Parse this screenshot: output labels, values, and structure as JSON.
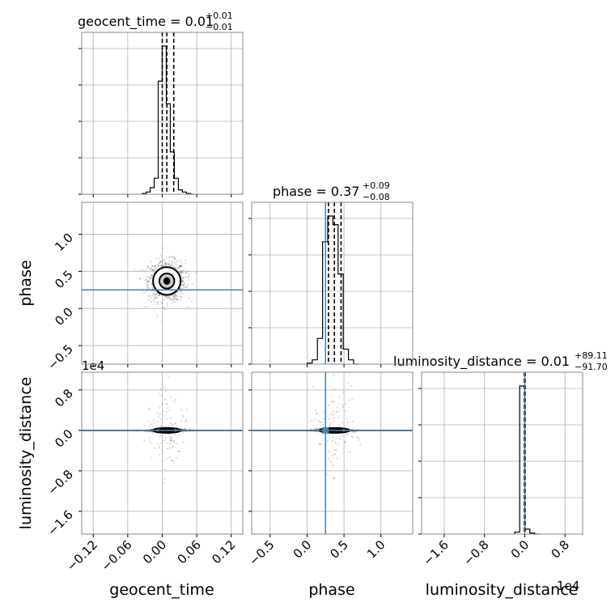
{
  "chart_data": {
    "type": "corner",
    "parameters": [
      "geocent_time",
      "phase",
      "luminosity_distance"
    ],
    "titles": {
      "geocent_time": {
        "label": "geocent_time = 0.01",
        "sup": "+0.01",
        "sub": "−0.01"
      },
      "phase": {
        "label": "phase = 0.37",
        "sup": "+0.09",
        "sub": "−0.08"
      },
      "luminosity_distance": {
        "label": "luminosity_distance = 0.01",
        "sup": "+89.11",
        "sub": "−91.70"
      }
    },
    "axis_labels": {
      "geocent_time": "geocent_time",
      "phase": "phase",
      "luminosity_distance": "luminosity_distance"
    },
    "offset_text": {
      "lumdist_y": "1e4",
      "lumdist_x": "1e4"
    },
    "ticks": {
      "geocent_time": {
        "values": [
          -0.12,
          -0.06,
          0.0,
          0.06,
          0.12
        ],
        "labels": [
          "−0.12",
          "−0.06",
          "0.00",
          "0.06",
          "0.12"
        ]
      },
      "phase": {
        "values": [
          -0.5,
          0.0,
          0.5,
          1.0
        ],
        "labels": [
          "−0.5",
          "0.0",
          "0.5",
          "1.0"
        ]
      },
      "luminosity_distance": {
        "values": [
          -1.6,
          -0.8,
          0.0,
          0.8
        ],
        "labels": [
          "−1.6",
          "−0.8",
          "0.0",
          "0.8"
        ]
      }
    },
    "ranges": {
      "geocent_time": [
        -0.14,
        0.14
      ],
      "phase": [
        -0.75,
        1.43
      ],
      "luminosity_distance": [
        -2.05,
        1.15
      ]
    },
    "truths": {
      "phase": 0.25,
      "luminosity_distance": 0.0
    },
    "quantiles": {
      "geocent_time": [
        0.0,
        0.008,
        0.02
      ],
      "phase": [
        0.29,
        0.37,
        0.46
      ],
      "luminosity_distance": [
        -0.009,
        0.0,
        0.009
      ]
    },
    "histograms": {
      "geocent_time": {
        "edges": [
          -0.035,
          -0.028,
          -0.021,
          -0.014,
          -0.007,
          0.0,
          0.007,
          0.014,
          0.021,
          0.028,
          0.035,
          0.042,
          0.049,
          0.056
        ],
        "counts": [
          1,
          3,
          9,
          22,
          155,
          203,
          124,
          58,
          22,
          6,
          3,
          1,
          0
        ]
      },
      "phase": {
        "edges": [
          0.0,
          0.07,
          0.14,
          0.21,
          0.28,
          0.35,
          0.42,
          0.49,
          0.56,
          0.63,
          0.7
        ],
        "counts": [
          1,
          4,
          24,
          114,
          138,
          130,
          84,
          14,
          4,
          0
        ]
      },
      "luminosity_distance": {
        "edges": [
          -0.2,
          -0.1,
          0.0,
          0.1,
          0.2,
          0.3
        ],
        "counts": [
          2,
          150,
          5,
          1,
          0
        ]
      }
    },
    "grid": true
  }
}
